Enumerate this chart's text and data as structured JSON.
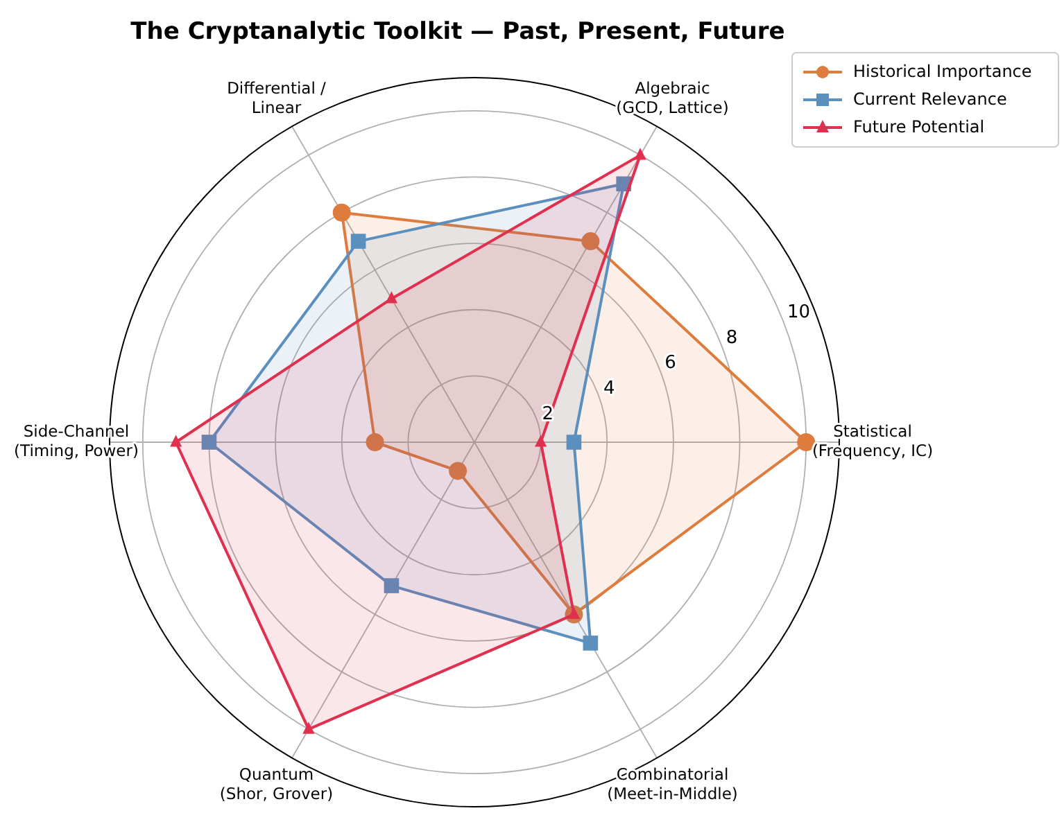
{
  "chart_data": {
    "type": "radar",
    "title": "The Cryptanalytic Toolkit — Past, Present, Future",
    "categories": [
      "Algebraic\n(GCD, Lattice)",
      "Statistical\n(Frequency, IC)",
      "Combinatorial\n(Meet-in-Middle)",
      "Quantum\n(Shor, Grover)",
      "Side-Channel\n(Timing, Power)",
      "Differential /\nLinear"
    ],
    "series": [
      {
        "name": "Historical Importance",
        "color": "#dd7c3c",
        "marker": "circle",
        "values": [
          7,
          10,
          6,
          1,
          3,
          8
        ]
      },
      {
        "name": "Current Relevance",
        "color": "#5b8fbe",
        "marker": "square",
        "values": [
          9,
          3,
          7,
          5,
          8,
          7
        ]
      },
      {
        "name": "Future Potential",
        "color": "#e0304f",
        "marker": "triangle",
        "values": [
          10,
          2,
          6,
          10,
          9,
          5
        ]
      }
    ],
    "ylim": [
      0,
      11
    ],
    "yticks": [
      2,
      4,
      6,
      8,
      10
    ],
    "grid": true,
    "legend": "top right"
  }
}
